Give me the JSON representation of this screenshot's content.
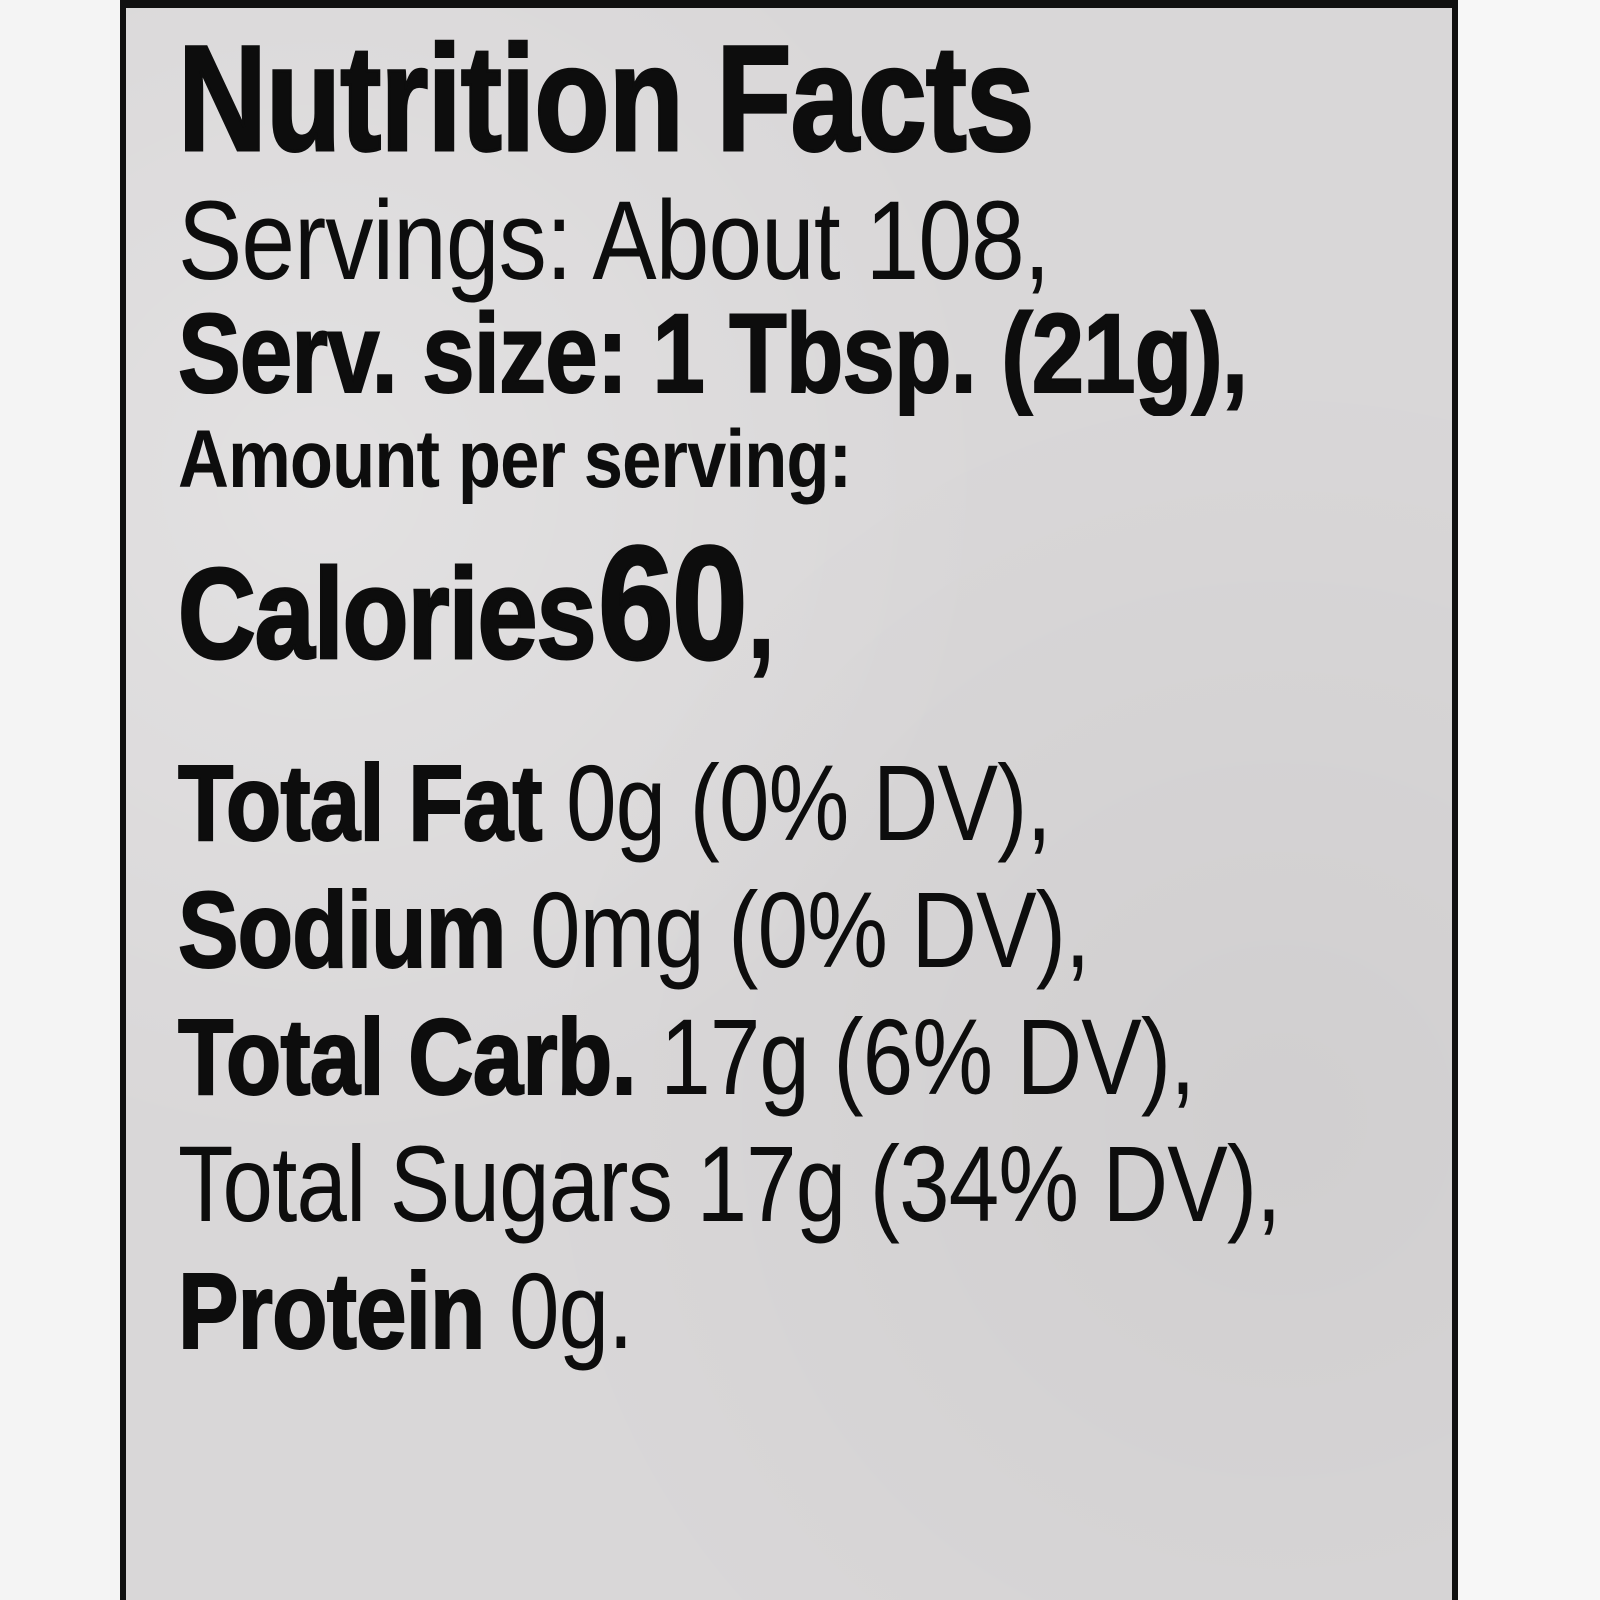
{
  "label": {
    "title": "Nutrition Facts",
    "servings": "Servings: About 108,",
    "serving_size": "Serv. size: 1 Tbsp. (21g),",
    "amount_per_serving": "Amount per serving:",
    "calories": {
      "label": "Calories",
      "value": "60",
      "suffix": ","
    },
    "nutrients": [
      {
        "name": "Total Fat",
        "rest": "0g (0% DV),",
        "bold": true
      },
      {
        "name": "Sodium",
        "rest": "0mg (0% DV),",
        "bold": true
      },
      {
        "name": "Total Carb.",
        "rest": "17g (6% DV),",
        "bold": true
      },
      {
        "name": "Total Sugars",
        "rest": "17g (34% DV),",
        "bold": false
      },
      {
        "name": "Protein",
        "rest": "0g.",
        "bold": true
      }
    ]
  }
}
